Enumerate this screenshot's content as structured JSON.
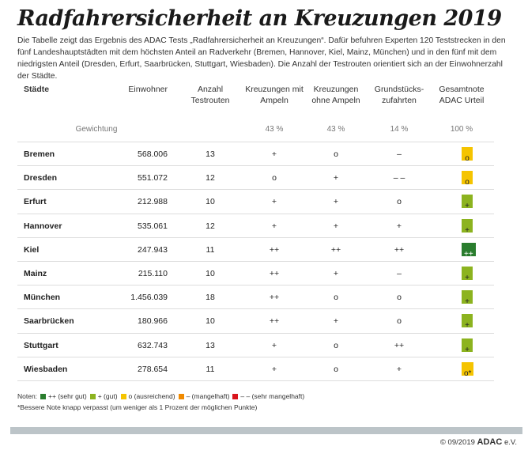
{
  "title": "Radfahrersicherheit an Kreuzungen 2019",
  "intro": "Die Tabelle zeigt das Ergebnis des ADAC Tests „Radfahrersicherheit an Kreuzungen“. Dafür befuhren Experten 120 Teststrecken in den fünf Landeshauptstädten mit dem höchsten Anteil an Radverkehr (Bremen, Hannover, Kiel, Mainz, München) und in den fünf mit dem niedrigsten Anteil (Dresden, Erfurt, Saarbrücken, Stuttgart, Wiesbaden). Die Anzahl der Testrouten orientiert sich an der Einwohnerzahl der Städte.",
  "headers": [
    "Städte",
    "Einwohner",
    "Anzahl\nTestrouten",
    "Kreuzungen mit\nAmpeln",
    "Kreuzungen\nohne Ampeln",
    "Grundstücks-\nzufahrten",
    "Gesamtnote\nADAC Urteil"
  ],
  "weighting": {
    "label": "Gewichtung",
    "values": [
      "43 %",
      "43 %",
      "14 %",
      "100 %"
    ]
  },
  "grade_colors": {
    "++": "#2a7d2e",
    "+": "#8cb31f",
    "o": "#f5c400",
    "-": "#f08a00",
    "--": "#d9141c"
  },
  "rows": [
    {
      "city": "Bremen",
      "pop": "568.006",
      "routes": "13",
      "mit": "+",
      "ohne": "o",
      "grund": "–",
      "total": "o",
      "grade": "o"
    },
    {
      "city": "Dresden",
      "pop": "551.072",
      "routes": "12",
      "mit": "o",
      "ohne": "+",
      "grund": "– –",
      "total": "o",
      "grade": "o"
    },
    {
      "city": "Erfurt",
      "pop": "212.988",
      "routes": "10",
      "mit": "+",
      "ohne": "+",
      "grund": "o",
      "total": "+",
      "grade": "+"
    },
    {
      "city": "Hannover",
      "pop": "535.061",
      "routes": "12",
      "mit": "+",
      "ohne": "+",
      "grund": "+",
      "total": "+",
      "grade": "+"
    },
    {
      "city": "Kiel",
      "pop": "247.943",
      "routes": "11",
      "mit": "++",
      "ohne": "++",
      "grund": "++",
      "total": "++",
      "grade": "++"
    },
    {
      "city": "Mainz",
      "pop": "215.110",
      "routes": "10",
      "mit": "++",
      "ohne": "+",
      "grund": "–",
      "total": "+",
      "grade": "+"
    },
    {
      "city": "München",
      "pop": "1.456.039",
      "routes": "18",
      "mit": "++",
      "ohne": "o",
      "grund": "o",
      "total": "+",
      "grade": "+"
    },
    {
      "city": "Saarbrücken",
      "pop": "180.966",
      "routes": "10",
      "mit": "++",
      "ohne": "+",
      "grund": "o",
      "total": "+",
      "grade": "+"
    },
    {
      "city": "Stuttgart",
      "pop": "632.743",
      "routes": "13",
      "mit": "+",
      "ohne": "o",
      "grund": "++",
      "total": "+",
      "grade": "+"
    },
    {
      "city": "Wiesbaden",
      "pop": "278.654",
      "routes": "11",
      "mit": "+",
      "ohne": "o",
      "grund": "+",
      "total": "o*",
      "grade": "o"
    }
  ],
  "legend": {
    "label": "Noten:",
    "items": [
      {
        "grade": "++",
        "text": "++ (sehr gut)"
      },
      {
        "grade": "+",
        "text": "+ (gut)"
      },
      {
        "grade": "o",
        "text": "o (ausreichend)"
      },
      {
        "grade": "-",
        "text": "– (mangelhaft)"
      },
      {
        "grade": "--",
        "text": "– – (sehr mangelhaft)"
      }
    ]
  },
  "note": "*Bessere Note knapp verpasst (um weniger als 1 Prozent der möglichen Punkte)",
  "copyright": "© 09/2019",
  "brand": "ADAC",
  "brand_suffix": "e.V."
}
